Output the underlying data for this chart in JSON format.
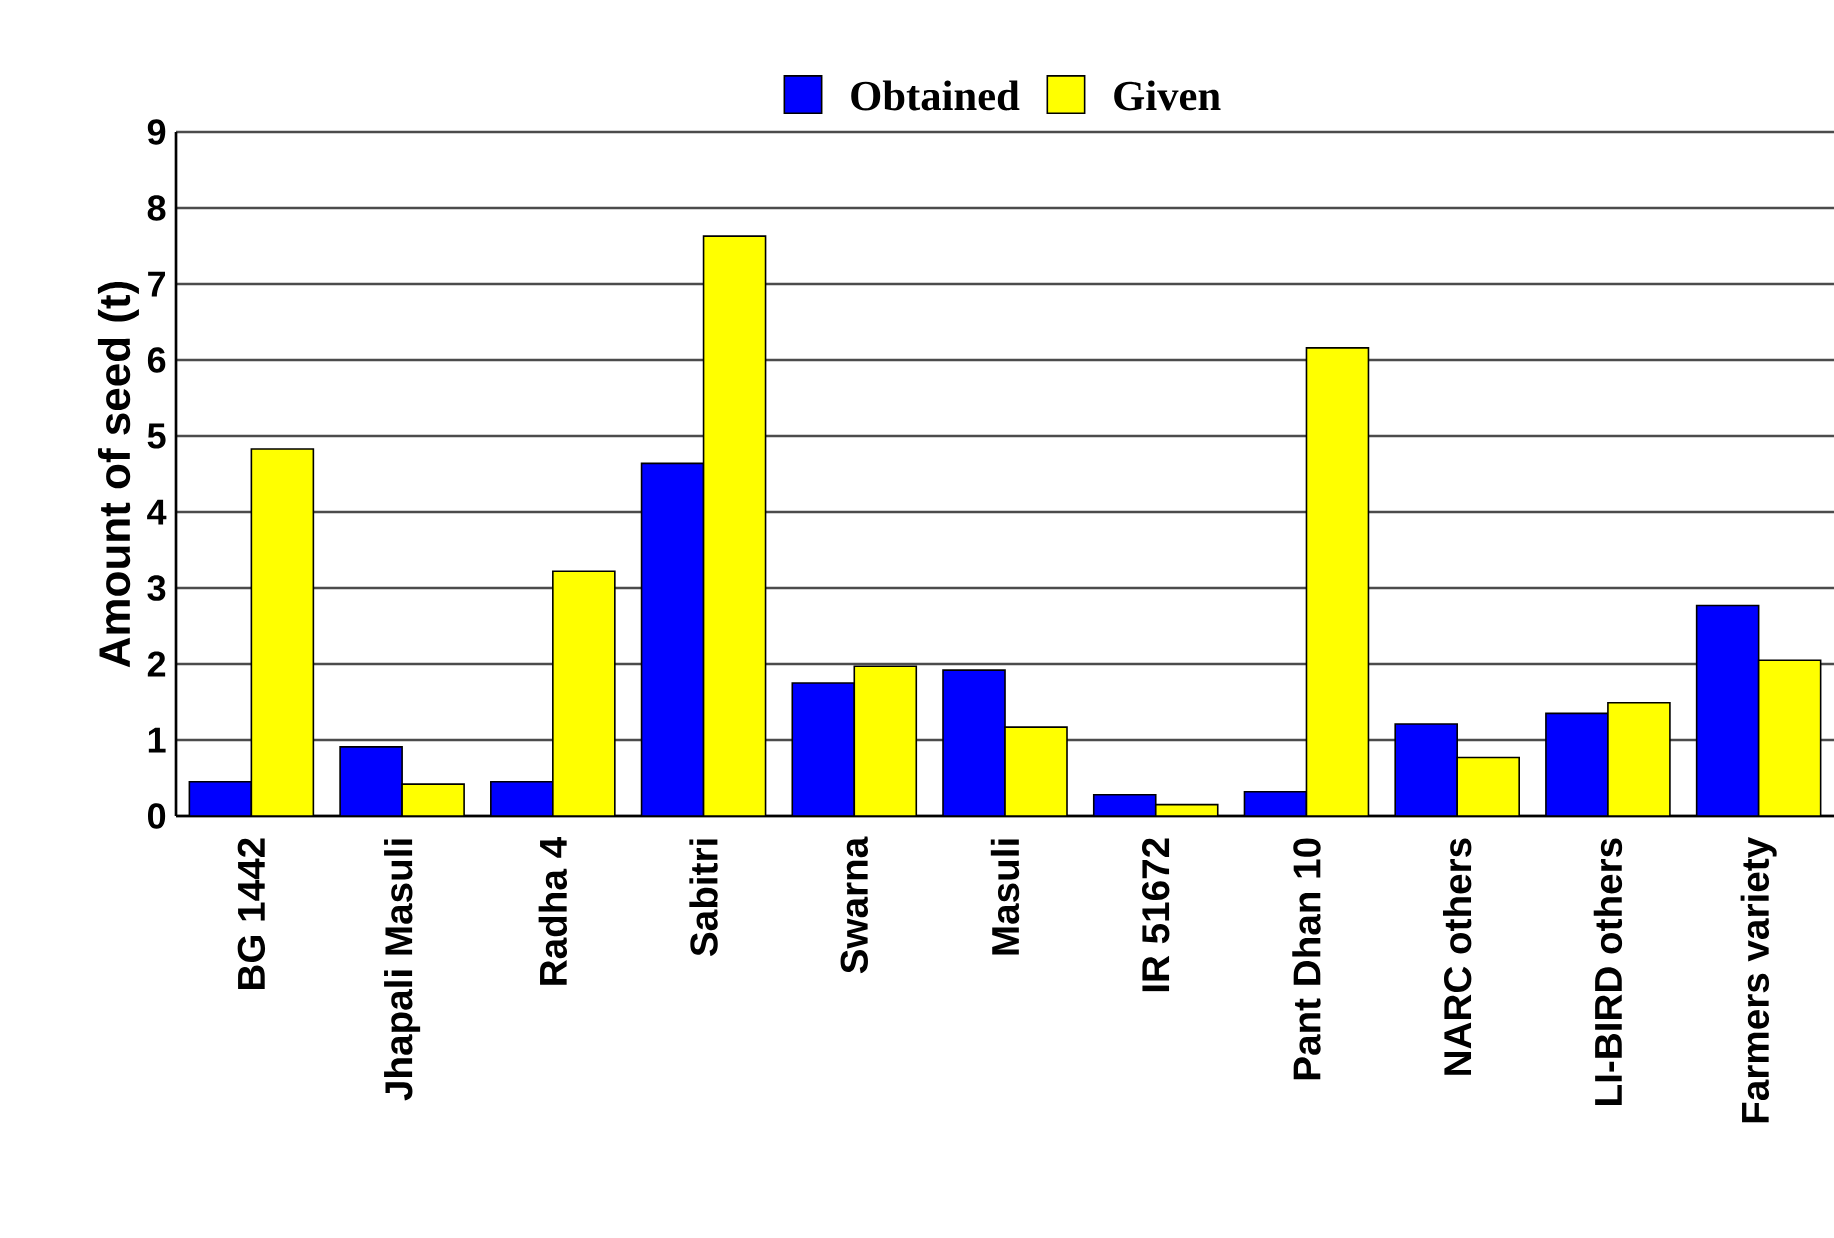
{
  "chart_data": {
    "type": "bar",
    "ylabel": "Amount of seed (t)",
    "categories": [
      "BG 1442",
      "Jhapali Masuli",
      "Radha 4",
      "Sabitri",
      "Swarna",
      "Masuli",
      "IR 51672",
      "Pant Dhan 10",
      "NARC others",
      "LI-BIRD others",
      "Farmers variety"
    ],
    "series": [
      {
        "name": "Obtained",
        "color": "#0000ff",
        "values": [
          0.45,
          0.91,
          0.45,
          4.64,
          1.75,
          1.92,
          0.28,
          0.32,
          1.21,
          1.35,
          2.77
        ]
      },
      {
        "name": "Given",
        "color": "#ffff00",
        "values": [
          4.83,
          0.42,
          3.22,
          7.63,
          1.97,
          1.17,
          0.15,
          6.16,
          0.77,
          1.49,
          2.05
        ]
      }
    ],
    "ylim": [
      0,
      9
    ],
    "yticks": [
      0,
      1,
      2,
      3,
      4,
      5,
      6,
      7,
      8,
      9
    ],
    "grid": "y",
    "legend": "top"
  }
}
